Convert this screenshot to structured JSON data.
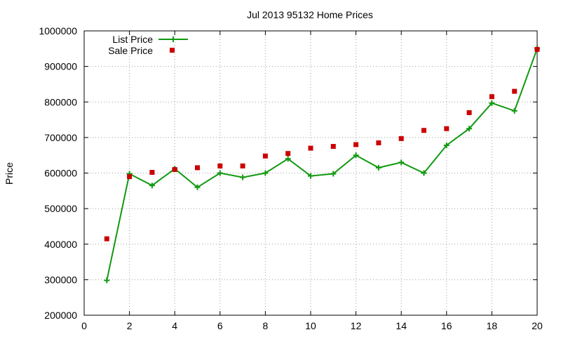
{
  "chart_data": {
    "type": "line",
    "title": "Jul 2013 95132 Home Prices",
    "xlabel": "",
    "ylabel": "Price",
    "xlim": [
      0,
      20
    ],
    "ylim": [
      200000,
      1000000
    ],
    "x_ticks": [
      "0",
      "2",
      "4",
      "6",
      "8",
      "10",
      "12",
      "14",
      "16",
      "18",
      "20"
    ],
    "y_ticks": [
      "200000",
      "300000",
      "400000",
      "500000",
      "600000",
      "700000",
      "800000",
      "900000",
      "1000000"
    ],
    "grid": true,
    "legend_position": "top-left",
    "series": [
      {
        "name": "List Price",
        "style": "line-with-plus-markers",
        "color": "#119911",
        "x": [
          1,
          2,
          3,
          4,
          5,
          6,
          7,
          8,
          9,
          10,
          11,
          12,
          13,
          14,
          15,
          16,
          17,
          18,
          19,
          20
        ],
        "y": [
          298000,
          598000,
          565000,
          612000,
          560000,
          600000,
          588000,
          600000,
          640000,
          592000,
          598000,
          650000,
          615000,
          630000,
          600000,
          678000,
          725000,
          797000,
          775000,
          950000
        ]
      },
      {
        "name": "Sale Price",
        "style": "square-markers",
        "color": "#cc0000",
        "x": [
          1,
          2,
          3,
          4,
          5,
          6,
          7,
          8,
          9,
          10,
          11,
          12,
          13,
          14,
          15,
          16,
          17,
          18,
          19,
          20
        ],
        "y": [
          415000,
          590000,
          602000,
          610000,
          615000,
          620000,
          620000,
          648000,
          655000,
          670000,
          675000,
          680000,
          685000,
          697000,
          720000,
          725000,
          770000,
          815000,
          830000,
          948000
        ]
      }
    ]
  }
}
